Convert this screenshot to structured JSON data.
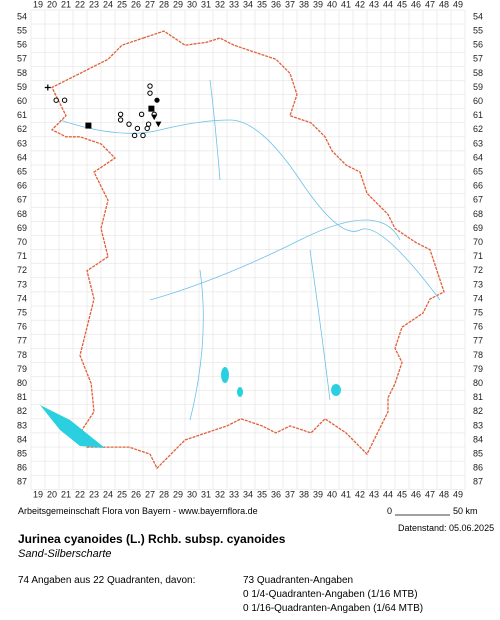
{
  "map": {
    "columns": [
      19,
      20,
      21,
      22,
      23,
      24,
      25,
      26,
      27,
      28,
      29,
      30,
      31,
      32,
      33,
      34,
      35,
      36,
      37,
      38,
      39,
      40,
      41,
      42,
      43,
      44,
      45,
      46,
      47,
      48,
      49
    ],
    "rows": [
      54,
      55,
      56,
      57,
      58,
      59,
      60,
      61,
      62,
      63,
      64,
      65,
      66,
      67,
      68,
      69,
      70,
      71,
      72,
      73,
      74,
      75,
      76,
      77,
      78,
      79,
      80,
      81,
      82,
      83,
      84,
      85,
      86,
      87
    ]
  },
  "footer": {
    "credit": "Arbeitsgemeinschaft Flora von Bayern - www.bayernflora.de",
    "scale_start": "0",
    "scale_end": "50 km",
    "date": "Datenstand: 05.06.2025"
  },
  "species": {
    "name": "Jurinea cyanoides (L.) Rchb. subsp. cyanoides",
    "common_name": "Sand-Silberscharte"
  },
  "summary": {
    "total": "74 Angaben aus 22 Quadranten, davon:",
    "quadrant": "73 Quadranten-Angaben",
    "quarter": "0 1/4-Quadranten-Angaben (1/16 MTB)",
    "sixteenth": "0 1/16-Quadranten-Angaben (1/64 MTB)"
  }
}
